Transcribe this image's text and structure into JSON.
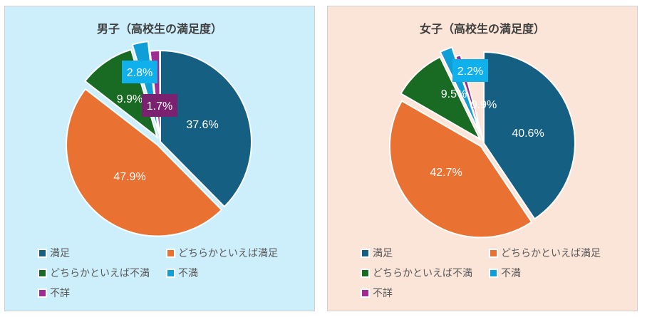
{
  "chart_data": [
    {
      "type": "pie",
      "title": "男子（高校生の満足度）",
      "categories": [
        "満足",
        "どちらかといえば満足",
        "どちらかといえば不満",
        "不満",
        "不詳"
      ],
      "values": [
        37.6,
        47.9,
        9.9,
        2.8,
        1.7
      ],
      "labels": [
        "37.6%",
        "47.9%",
        "9.9%",
        "2.8%",
        "1.7%"
      ],
      "colors": [
        "#156082",
        "#e97132",
        "#196b24",
        "#0f9ed5",
        "#a02b93"
      ],
      "legend": "bottom"
    },
    {
      "type": "pie",
      "title": "女子（高校生の満足度）",
      "categories": [
        "満足",
        "どちらかといえば満足",
        "どちらかといえば不満",
        "不満",
        "不詳"
      ],
      "values": [
        40.6,
        42.7,
        9.5,
        2.2,
        0.9
      ],
      "labels": [
        "40.6%",
        "42.7%",
        "9.5%",
        "2.2%",
        "0.9%"
      ],
      "colors": [
        "#156082",
        "#e97132",
        "#196b24",
        "#0f9ed5",
        "#a02b93"
      ],
      "legend": "bottom"
    }
  ]
}
